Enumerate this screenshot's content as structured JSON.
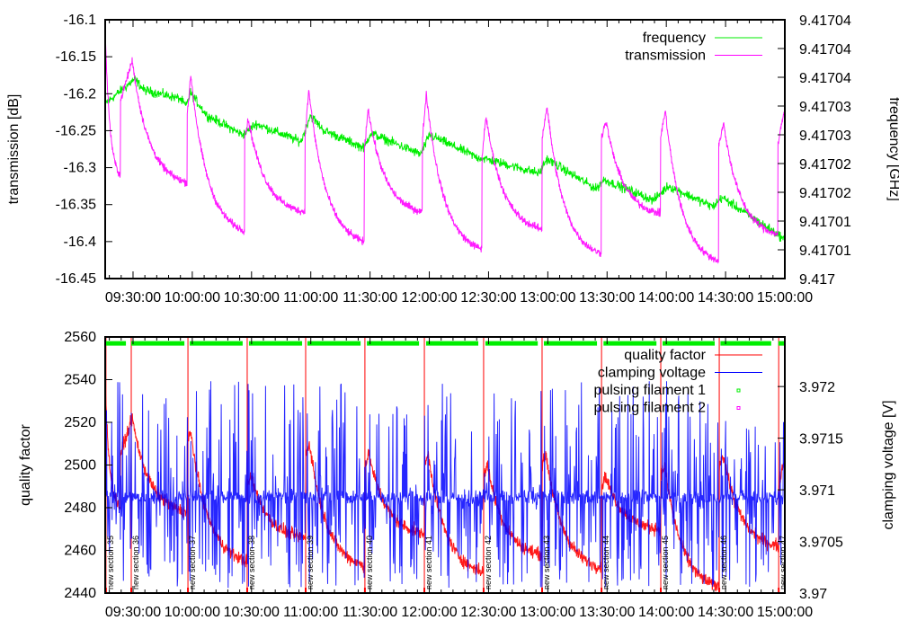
{
  "chart_data": [
    {
      "type": "line",
      "title": "",
      "xlabel": "",
      "ylabel": "transmission [dB]",
      "y2label": "frequency [GHz]",
      "x_range_min": [
        15.9,
        360
      ],
      "x_ticks": [
        "09:30:00",
        "10:00:00",
        "10:30:00",
        "11:00:00",
        "11:30:00",
        "12:00:00",
        "12:30:00",
        "13:00:00",
        "13:30:00",
        "14:00:00",
        "14:30:00",
        "15:00:00"
      ],
      "x_tick_min": [
        30,
        60,
        90,
        120,
        150,
        180,
        210,
        240,
        270,
        300,
        330,
        360
      ],
      "ylim": [
        -16.45,
        -16.1
      ],
      "y_ticks": [
        "-16.1",
        "-16.15",
        "-16.2",
        "-16.25",
        "-16.3",
        "-16.35",
        "-16.4",
        "-16.45"
      ],
      "y2lim": [
        9.417,
        9.417045
      ],
      "y2_ticks": [
        "9.41704",
        "9.41704",
        "9.41704",
        "9.41703",
        "9.41703",
        "9.41702",
        "9.41702",
        "9.41701",
        "9.41701",
        "9.417"
      ],
      "legend_position": "top-right",
      "series": [
        {
          "name": "frequency",
          "axis": "y2",
          "color": "#00ee00",
          "points": [
            [
              16.3,
              9.4170305
            ],
            [
              30.9,
              9.4170347
            ],
            [
              35.5,
              9.4170328
            ],
            [
              53.7,
              9.4170313
            ],
            [
              56.9,
              9.41703
            ],
            [
              59.1,
              9.4170323
            ],
            [
              67.3,
              9.4170284
            ],
            [
              85.5,
              9.417025
            ],
            [
              92.3,
              9.4170269
            ],
            [
              115.1,
              9.4170238
            ],
            [
              119.7,
              9.4170284
            ],
            [
              126.5,
              9.4170258
            ],
            [
              147,
              9.4170227
            ],
            [
              150.2,
              9.4170253
            ],
            [
              175.7,
              9.4170216
            ],
            [
              180.2,
              9.417025
            ],
            [
              203.9,
              9.4170211
            ],
            [
              210.7,
              9.4170206
            ],
            [
              235.8,
              9.4170183
            ],
            [
              239.4,
              9.4170208
            ],
            [
              264.4,
              9.4170156
            ],
            [
              268.5,
              9.4170172
            ],
            [
              293.5,
              9.4170136
            ],
            [
              300.9,
              9.4170161
            ],
            [
              323.6,
              9.4170125
            ],
            [
              328.2,
              9.4170141
            ],
            [
              357.3,
              9.4170075
            ],
            [
              360,
              9.4170066
            ]
          ]
        },
        {
          "name": "transmission",
          "axis": "y",
          "color": "#ff00ff",
          "segments": [
            {
              "start": 15.9,
              "end": 23.6,
              "jump": -16.12,
              "peak": -16.12,
              "rise": 0.1,
              "final": -16.31
            },
            {
              "start": 23.6,
              "end": 57.3,
              "jump": -16.21,
              "peak": -16.155,
              "rise": 6,
              "final": -16.32
            },
            {
              "start": 57.3,
              "end": 86.4,
              "jump": -16.23,
              "peak": -16.175,
              "rise": 2,
              "final": -16.385
            },
            {
              "start": 86.4,
              "end": 117,
              "jump": -16.26,
              "peak": -16.235,
              "rise": 2,
              "final": -16.36
            },
            {
              "start": 117,
              "end": 147,
              "jump": -16.26,
              "peak": -16.195,
              "rise": 2,
              "final": -16.4
            },
            {
              "start": 147,
              "end": 176.5,
              "jump": -16.28,
              "peak": -16.22,
              "rise": 2,
              "final": -16.36
            },
            {
              "start": 176.5,
              "end": 206.6,
              "jump": -16.26,
              "peak": -16.2,
              "rise": 2,
              "final": -16.41
            },
            {
              "start": 206.6,
              "end": 237.1,
              "jump": -16.29,
              "peak": -16.23,
              "rise": 2,
              "final": -16.383
            },
            {
              "start": 237.1,
              "end": 267,
              "jump": -16.26,
              "peak": -16.217,
              "rise": 2.5,
              "final": -16.416
            },
            {
              "start": 267,
              "end": 297,
              "jump": -16.26,
              "peak": -16.237,
              "rise": 2.5,
              "final": -16.362
            },
            {
              "start": 297,
              "end": 326.5,
              "jump": -16.26,
              "peak": -16.223,
              "rise": 2.5,
              "final": -16.426
            },
            {
              "start": 326.5,
              "end": 356.5,
              "jump": -16.27,
              "peak": -16.24,
              "rise": 2.5,
              "final": -16.39
            },
            {
              "start": 356.5,
              "end": 360,
              "jump": -16.27,
              "peak": -16.225,
              "rise": 3,
              "final": -16.225
            }
          ]
        }
      ]
    },
    {
      "type": "line",
      "title": "",
      "xlabel": "",
      "ylabel": "quality factor",
      "y2label": "clamping voltage [V]",
      "x_range_min": [
        15.9,
        360
      ],
      "x_ticks": [
        "09:30:00",
        "10:00:00",
        "10:30:00",
        "11:00:00",
        "11:30:00",
        "12:00:00",
        "12:30:00",
        "13:00:00",
        "13:30:00",
        "14:00:00",
        "14:30:00",
        "15:00:00"
      ],
      "x_tick_min": [
        30,
        60,
        90,
        120,
        150,
        180,
        210,
        240,
        270,
        300,
        330,
        360
      ],
      "ylim": [
        2440,
        2560
      ],
      "y_ticks": [
        "2560",
        "2540",
        "2520",
        "2500",
        "2480",
        "2460",
        "2440"
      ],
      "y2lim": [
        3.97,
        3.97248
      ],
      "y2_ticks": [
        "3.972",
        "3.9715",
        "3.971",
        "3.9705",
        "3.97"
      ],
      "legend_position": "top-right",
      "series": [
        {
          "name": "quality factor",
          "axis": "y",
          "color": "#ff0000",
          "segments": [
            {
              "start": 15.9,
              "end": 23.6,
              "jump": 2535,
              "peak": 2535,
              "rise": 0.1,
              "final": 2480
            },
            {
              "start": 23.6,
              "end": 57.3,
              "jump": 2505,
              "peak": 2522,
              "rise": 6,
              "final": 2478
            },
            {
              "start": 57.3,
              "end": 87.8,
              "jump": 2510,
              "peak": 2515,
              "rise": 2,
              "final": 2455
            },
            {
              "start": 87.8,
              "end": 117.4,
              "jump": 2490,
              "peak": 2495,
              "rise": 2,
              "final": 2466
            },
            {
              "start": 117.4,
              "end": 147.4,
              "jump": 2505,
              "peak": 2510,
              "rise": 2,
              "final": 2453
            },
            {
              "start": 147.4,
              "end": 177.5,
              "jump": 2500,
              "peak": 2505,
              "rise": 2,
              "final": 2468
            },
            {
              "start": 177.5,
              "end": 207.5,
              "jump": 2500,
              "peak": 2505,
              "rise": 2,
              "final": 2450
            },
            {
              "start": 207.5,
              "end": 237.1,
              "jump": 2495,
              "peak": 2500,
              "rise": 2,
              "final": 2458
            },
            {
              "start": 237.1,
              "end": 267.2,
              "jump": 2500,
              "peak": 2505,
              "rise": 2,
              "final": 2452
            },
            {
              "start": 267.2,
              "end": 297.2,
              "jump": 2490,
              "peak": 2495,
              "rise": 2,
              "final": 2470
            },
            {
              "start": 297.2,
              "end": 326.8,
              "jump": 2495,
              "peak": 2500,
              "rise": 2,
              "final": 2443
            },
            {
              "start": 326.8,
              "end": 356.9,
              "jump": 2500,
              "peak": 2505,
              "rise": 2,
              "final": 2462
            },
            {
              "start": 356.9,
              "end": 360,
              "jump": 2490,
              "peak": 2500,
              "rise": 2,
              "final": 2500
            }
          ]
        },
        {
          "name": "clamping voltage",
          "axis": "y2",
          "color": "#0000ff",
          "baseline": 3.97093,
          "min": 3.97005,
          "max": 3.97225
        },
        {
          "name": "pulsing filament 1",
          "axis": "y",
          "color": "#00ee00",
          "value": 2557,
          "on_intervals": [
            [
              15.9,
              26.4
            ],
            [
              29.1,
              56
            ],
            [
              58.7,
              85.5
            ],
            [
              88.7,
              115.6
            ],
            [
              118.3,
              145.2
            ],
            [
              148.4,
              174.8
            ],
            [
              178.4,
              204.8
            ],
            [
              208.4,
              234.9
            ],
            [
              238,
              264.9
            ],
            [
              268.2,
              295
            ],
            [
              298.1,
              324.5
            ],
            [
              327.4,
              353.1
            ],
            [
              356.7,
              360
            ]
          ]
        },
        {
          "name": "pulsing filament 2",
          "axis": "y",
          "color": "#ff00ff",
          "on_intervals": []
        }
      ],
      "annotations": [
        {
          "text": "new section 35",
          "t": 16.3
        },
        {
          "text": "new section 36",
          "t": 29.1
        },
        {
          "text": "new section 37",
          "t": 57.8
        },
        {
          "text": "new section 38",
          "t": 87.8
        },
        {
          "text": "new section 39",
          "t": 117.4
        },
        {
          "text": "new section 40",
          "t": 147.4
        },
        {
          "text": "new section 41",
          "t": 177.5
        },
        {
          "text": "new section 42",
          "t": 207.5
        },
        {
          "text": "new section 43",
          "t": 237.1
        },
        {
          "text": "new section 44",
          "t": 267.2
        },
        {
          "text": "new section 45",
          "t": 297.2
        },
        {
          "text": "new section 46",
          "t": 326.8
        },
        {
          "text": "new section 47",
          "t": 356.9
        }
      ]
    }
  ]
}
